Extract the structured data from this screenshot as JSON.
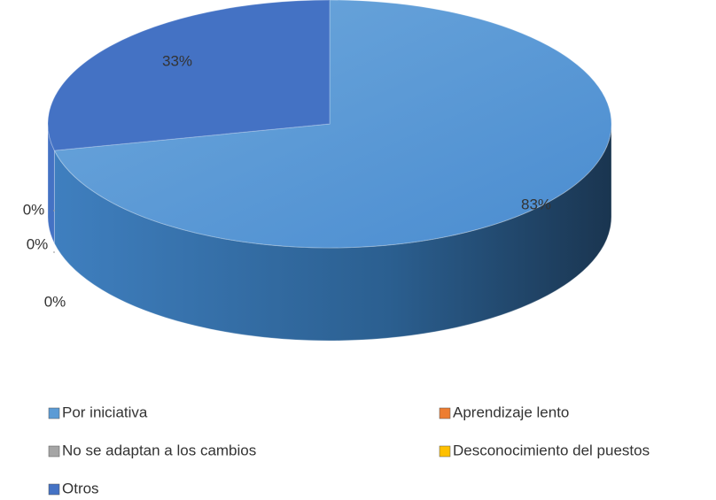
{
  "chart_data": {
    "type": "pie",
    "categories": [
      "Por iniciativa",
      "Aprendizaje lento",
      "No se adaptan a los cambios",
      "Desconocimiento del puestos",
      "Otros"
    ],
    "values": [
      83,
      0,
      0,
      0,
      33
    ],
    "value_labels": [
      "83%",
      "0%",
      "0%",
      "0%",
      "33%"
    ],
    "colors": [
      "#5b9bd5",
      "#ed7d31",
      "#a5a5a5",
      "#ffc000",
      "#4472c4"
    ],
    "legend": "bottom"
  }
}
